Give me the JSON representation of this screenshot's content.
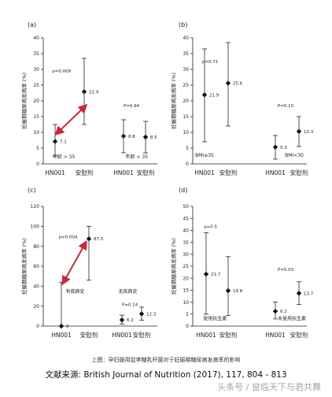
{
  "caption": "上图：孕妇服用鼠李糖乳杆菌对于妊娠期糖尿病发病率的影响",
  "source": "文献来源: British Journal of Nutrition (2017), 117, 804 - 813",
  "watermark": "头条号 / 窗临天下与君共舞",
  "colors": {
    "axis": "#222222",
    "arrow": "#c8283c",
    "text": "#222222"
  },
  "chart_data": [
    {
      "panel": "(a)",
      "type": "scatter",
      "ylabel": "妊娠期糖尿病发病率 (%)",
      "ylim": [
        0,
        40
      ],
      "yticks": [
        0,
        5,
        10,
        15,
        20,
        25,
        30,
        35,
        40
      ],
      "xticks": [
        "HN001",
        "安慰剂",
        "HN001",
        "安慰剂"
      ],
      "points": [
        {
          "x": 1,
          "y": 7.1,
          "lo": 2.5,
          "hi": 12.5,
          "label": "7.1"
        },
        {
          "x": 2,
          "y": 22.9,
          "lo": 12.5,
          "hi": 33.5,
          "label": "22.9"
        },
        {
          "x": 3,
          "y": 8.8,
          "lo": 3.5,
          "hi": 14.0,
          "label": "8.8"
        },
        {
          "x": 4,
          "y": 8.5,
          "lo": 3.5,
          "hi": 13.5,
          "label": "8.5"
        }
      ],
      "pvalues": [
        {
          "text": "p=0.009",
          "x": 0.9,
          "y": 29
        },
        {
          "text": "P=0.94",
          "x": 3.0,
          "y": 18
        }
      ],
      "groups": [
        {
          "text": "年龄 > 35",
          "x": 1.3,
          "y": 1.8
        },
        {
          "text": "年龄 < 35",
          "x": 3.6,
          "y": 1.8
        }
      ],
      "arrow": {
        "x1": 1.1,
        "y1": 10.0,
        "x2": 2.0,
        "y2": 18.0
      }
    },
    {
      "panel": "(b)",
      "type": "scatter",
      "ylabel": "妊娠期糖尿病发病率 (%)",
      "ylim": [
        0,
        40
      ],
      "yticks": [
        0,
        5,
        10,
        15,
        20,
        25,
        30,
        35,
        40
      ],
      "xticks": [
        "HN001",
        "安慰剂",
        "HN001",
        "安慰剂"
      ],
      "points": [
        {
          "x": 1,
          "y": 21.9,
          "lo": 7.0,
          "hi": 36.5,
          "label": "21.9"
        },
        {
          "x": 2,
          "y": 25.6,
          "lo": 12.0,
          "hi": 38.5,
          "label": "25.6"
        },
        {
          "x": 3,
          "y": 5.3,
          "lo": 1.5,
          "hi": 9.0,
          "label": "5.3"
        },
        {
          "x": 4,
          "y": 10.3,
          "lo": 5.5,
          "hi": 15.0,
          "label": "10.3"
        }
      ],
      "pvalues": [
        {
          "text": "p=0.71",
          "x": 0.9,
          "y": 32
        },
        {
          "text": "P=0.10",
          "x": 3.1,
          "y": 18
        }
      ],
      "groups": [
        {
          "text": "BMI≥35",
          "x": 1.0,
          "y": 2.2
        },
        {
          "text": "BMI<30",
          "x": 3.8,
          "y": 2.2
        }
      ]
    },
    {
      "panel": "(c)",
      "type": "scatter",
      "ylabel": "妊娠期糖尿病发病率 (%)",
      "ylim": [
        0,
        120
      ],
      "yticks": [
        0,
        20,
        40,
        60,
        80,
        100,
        120
      ],
      "xticks": [
        "HN001",
        "安慰剂",
        "HN001",
        "安慰剂"
      ],
      "points": [
        {
          "x": 1,
          "y": 0,
          "lo": 0,
          "hi": 44,
          "label": "0"
        },
        {
          "x": 2,
          "y": 87.5,
          "lo": 46,
          "hi": 100,
          "label": "87.5"
        },
        {
          "x": 3,
          "y": 6.2,
          "lo": 2,
          "hi": 11,
          "label": "6.2"
        },
        {
          "x": 4,
          "y": 12.3,
          "lo": 6,
          "hi": 19,
          "label": "12.3"
        }
      ],
      "pvalues": [
        {
          "text": "p=0.004",
          "x": 0.9,
          "y": 88
        },
        {
          "text": "P=0.14",
          "x": 3.0,
          "y": 20
        }
      ],
      "groups": [
        {
          "text": "有疾病史",
          "x": 1.5,
          "y": 33
        },
        {
          "text": "无疾病史",
          "x": 3.3,
          "y": 33
        }
      ],
      "arrow": {
        "x1": 1.1,
        "y1": 45.0,
        "x2": 1.85,
        "y2": 82.0
      }
    },
    {
      "panel": "(d)",
      "type": "scatter",
      "ylabel": "妊娠期糖尿病发病率 (%)",
      "ylim": [
        0,
        50
      ],
      "yticks": [
        0,
        5,
        10,
        15,
        20,
        25,
        30,
        35,
        40,
        45,
        50
      ],
      "xticks": [
        "HN001",
        "安慰剂",
        "HN001",
        "安慰剂"
      ],
      "points": [
        {
          "x": 1,
          "y": 21.7,
          "lo": 5.0,
          "hi": 39.0,
          "label": "21.7"
        },
        {
          "x": 2,
          "y": 14.8,
          "lo": 4.5,
          "hi": 29.0,
          "label": "14.8"
        },
        {
          "x": 3,
          "y": 6.2,
          "lo": 3.0,
          "hi": 10.0,
          "label": "6.2"
        },
        {
          "x": 4,
          "y": 13.7,
          "lo": 9.0,
          "hi": 18.5,
          "label": "13.7"
        }
      ],
      "pvalues": [
        {
          "text": "p=0.5",
          "x": 0.9,
          "y": 41
        },
        {
          "text": "P=0.03",
          "x": 3.1,
          "y": 23
        }
      ],
      "groups": [
        {
          "text": "使用抗生素",
          "x": 1.4,
          "y": 2.5
        },
        {
          "text": "未使用抗生素",
          "x": 3.7,
          "y": 2.5
        }
      ]
    }
  ]
}
